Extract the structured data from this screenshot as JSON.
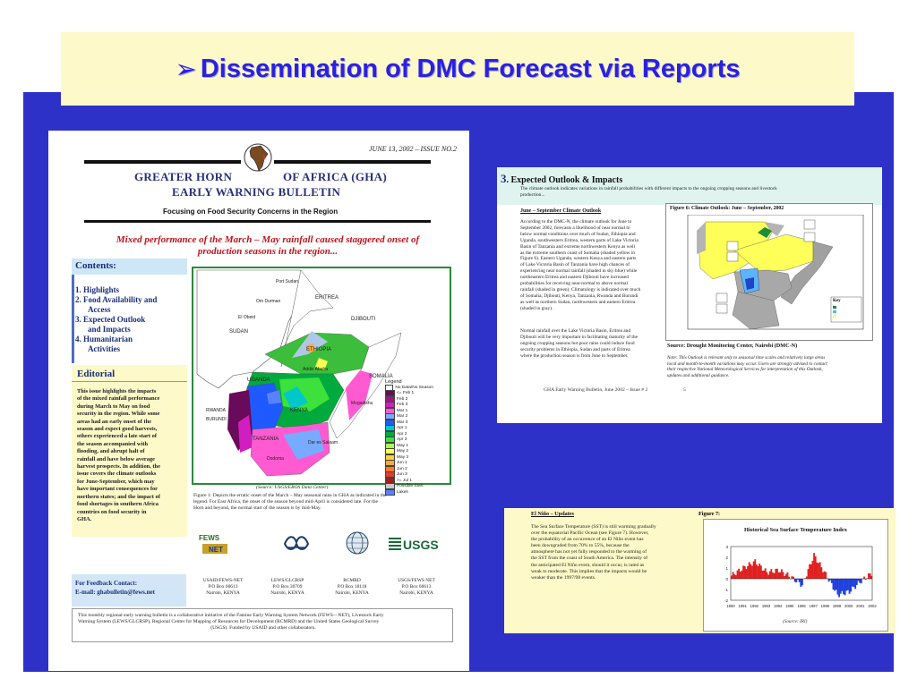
{
  "slide": {
    "title": "Dissemination of DMC Forecast via Reports",
    "bullet": "➢"
  },
  "colors": {
    "band": "#2e31c8",
    "title_bg": "#fdf9c8",
    "title_text": "#2a21e0"
  },
  "bulletin": {
    "date": "JUNE 13, 2002 – ISSUE NO.2",
    "title_left": "GREATER HORN",
    "title_right": "OF AFRICA (GHA)",
    "title_line2": "EARLY WARNING BULLETIN",
    "subtitle": "Focusing on Food Security Concerns in the Region",
    "headline_1": "Mixed performance of the March – May rainfall caused staggered onset of",
    "headline_2": "production seasons in the region...",
    "contents": {
      "title": "Contents:",
      "items": [
        "1.  Highlights",
        "2.  Food Availability and",
        "     Access",
        "3.  Expected Outlook",
        "     and Impacts",
        "4.  Humanitarian",
        "     Activities"
      ]
    },
    "editorial": {
      "title": "Editorial",
      "lines": [
        "This issue highlights the impacts",
        "of the mixed rainfall performance",
        "during March to May on food",
        "security in the region. While some",
        "areas had an early onset of the",
        "season and expect good harvests,",
        "others experienced a late start of",
        "the season accompanied with",
        "flooding, and abrupt halt of",
        "rainfall and have below average",
        "harvest prospects. In addition, the",
        "issue covers the climate outlooks",
        "for June-September, which may",
        "have important consequences for",
        "northern states; and the impact of",
        "food shortages in southern Africa",
        "countries on food security in",
        "GHA."
      ]
    },
    "map": {
      "labels": [
        "Port Sudan",
        "Om Durman",
        "El Obeid",
        "SUDAN",
        "ERITREA",
        "DJIBOUTI",
        "ETHIOPIA",
        "Addis Ababa",
        "SOMALIA",
        "Mogadishu",
        "UGANDA",
        "KENYA",
        "RWANDA",
        "BURUNDI",
        "TANZANIA",
        "Dodoma",
        "Dar es Salaam"
      ],
      "legend_title": "Legend",
      "legend": [
        {
          "label": "No Data/No Season",
          "color": "#ffffff"
        },
        {
          "label": "<= Feb 1",
          "color": "#6a0a5a"
        },
        {
          "label": "Feb 2",
          "color": "#a0148a"
        },
        {
          "label": "Feb 3",
          "color": "#d21ec0"
        },
        {
          "label": "Mar 1",
          "color": "#ff5ad2"
        },
        {
          "label": "Mar 2",
          "color": "#78aaff"
        },
        {
          "label": "Mar 3",
          "color": "#1e5aff"
        },
        {
          "label": "Apr 1",
          "color": "#00c8c8"
        },
        {
          "label": "Apr 2",
          "color": "#00aa3c"
        },
        {
          "label": "Apr 3",
          "color": "#3ce13c"
        },
        {
          "label": "May 1",
          "color": "#aaff55"
        },
        {
          "label": "May 2",
          "color": "#ffff55"
        },
        {
          "label": "May 3",
          "color": "#ffd23c"
        },
        {
          "label": "Jun 1",
          "color": "#ffaa3c"
        },
        {
          "label": "Jun 2",
          "color": "#ff7832"
        },
        {
          "label": "Jun 3",
          "color": "#e63c28"
        },
        {
          "label": ">= Jul 1",
          "color": "#a01e1e"
        },
        {
          "label": "Possible Start",
          "color": "#c8c8c8"
        },
        {
          "label": "Lakes",
          "color": "#5a82ff"
        }
      ],
      "source": "(Source: USGS/EROS Data Center)",
      "caption_1": "Figure 1: Depicts the erratic onset of the March – May seasonal rains in GHA as indicated in the",
      "caption_2": "legend. For East Africa, the onset of the season beyond mid-April is considered late.  For the",
      "caption_3": "Horn and beyond, the normal start of the season is by mid-May."
    },
    "logos": [
      "FEWS NET",
      "ICPAC",
      "RCMRD",
      "USGS"
    ],
    "feedback": {
      "line1": "For Feedback Contact:",
      "line2": "E-mail: ghabulletin@fews.net"
    },
    "addresses": [
      {
        "name": "USAID/FEWS-NET",
        "line2": "P.O Box 66613",
        "line3": "Nairobi, KENYA"
      },
      {
        "name": "LEWS/GLCRSP",
        "line2": "P.O Box 30709",
        "line3": "Nairobi, KENYA"
      },
      {
        "name": "RCMRD",
        "line2": "P.O Box 18118",
        "line3": "Nairobi, KENYA"
      },
      {
        "name": "USGS/FEWS NET",
        "line2": "P.O Box 66613",
        "line3": "Nairobi, KENYA"
      }
    ],
    "footer_1": "This monthly regional early warning bulletin is a collaborative initiative of the Famine Early Warning System Network (FEWS—NET), Livestock Early",
    "footer_2": "Warning System (LEWS/GLCRSP), Regional Center for Mapping of Resources for Development (RCMRD) and the United States Geological Survey",
    "footer_3": "(USGS). Funded by USAID and other collaborators."
  },
  "outlook_page": {
    "number": "3",
    "title": ". Expected Outlook & Impacts",
    "intro_1": "The climate outlook indicates variations in rainfall probabilities with different impacts to the ongoing cropping seasons and livestock",
    "intro_2": "production...",
    "sub": "June – September Climate Outlook",
    "body_1": [
      "According to the DMC-N, the climate outlook for June to",
      "September 2002, forecasts a likelihood of near normal to",
      "below normal conditions over much of Sudan, Ethiopia and",
      "Uganda, southwestern Eritrea, western parts of Lake Victoria",
      "Basin of Tanzania and extreme northwestern Kenya as well",
      "as the extreme southern coast of Somalia (shaded yellow in",
      "Figure 6). Eastern Uganda, western Kenya and eastern parts",
      "of Lake Victoria Basin of Tanzania have high chances of",
      "experiencing near normal rainfall (shaded in sky blue) while",
      "northeastern Eritrea and eastern Djibouti have increased",
      "probabilities for receiving near-normal to above normal",
      "rainfall (shaded in green). Climatology is indicated over much",
      "of Somalia, Djibouti, Kenya, Tanzania, Rwanda and Burundi",
      "as well as northern Sudan, northwestern and eastern Eritrea",
      "(shaded in gray)."
    ],
    "body_2": [
      "Normal rainfall over the Lake Victoria Basin, Eritrea and",
      "Djibouti will be very important in facilitating maturity of the",
      "ongoing cropping seasons but poor rains could induce food",
      "security problems in Ethiopia, Sudan and parts of Eritrea",
      "where the production season is from June to September."
    ],
    "fig_title": "Figure 6: Climate Outlook: June – September, 2002",
    "fig_key": "Key",
    "source": "Source: Drought Monitoring Center, Nairobi (DMC-N)",
    "note_1": "Note: This Outlook is relevant only to seasonal time scales and relatively large areas",
    "note_2": "local and month-to-month variations may occur. Users are strongly advised to contact",
    "note_3": "their respective National Meteorological Services for interpretation of this Outlook,",
    "note_4": "updates and additional guidance.",
    "footer": "GHA Early Warning Bulletin, June 2002 – Issue # 2",
    "page_no": "5"
  },
  "elnino_page": {
    "sub": "El Niño – Updates",
    "fig_label": "Figure 7:",
    "body": [
      "The Sea Surface Temperature (SST) is still warming gradually",
      "over the equatorial Pacific Ocean (see Figure 7). However,",
      "the probability of an occurrence of an El Niño event has",
      "been downgraded from 70% to 55%, because the",
      "atmosphere has not yet fully responded to the warming of",
      "the SST from the coast of South America. The intensity of",
      "the anticipated El Niño event, should it occur, is rated as",
      "weak to moderate. This implies that the impacts would be",
      "weaker than the 1997/98 events."
    ],
    "chart_title": "Historical Sea Surface Temperature Index",
    "chart_source": "(Source: IRI)"
  },
  "chart_data": {
    "type": "area",
    "title": "Historical Sea Surface Temperature Index",
    "x": [
      "1990",
      "1991",
      "1992",
      "1993",
      "1994",
      "1995",
      "1996",
      "1997",
      "1998",
      "1999",
      "2000",
      "2001",
      "2002"
    ],
    "series": [
      {
        "values": [
          0.3,
          1.0,
          1.6,
          0.6,
          0.8,
          0.2,
          -0.6,
          2.2,
          0.4,
          -1.5,
          -1.2,
          -0.2,
          0.6
        ]
      }
    ],
    "ylim": [
      -2,
      3
    ],
    "positive_color": "#e02020",
    "negative_color": "#2040e0"
  }
}
